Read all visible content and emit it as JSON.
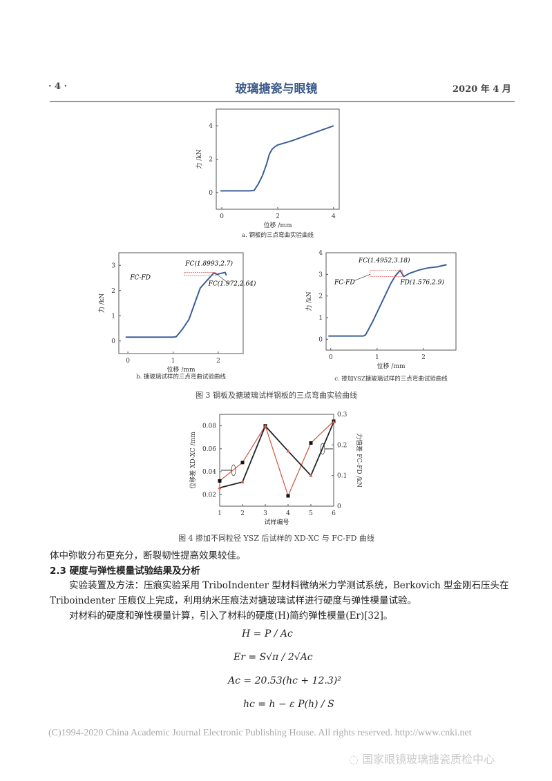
{
  "header": {
    "page": "· 4 ·",
    "journal": "玻璃搪瓷与眼镜",
    "date": "2020 年 4 月"
  },
  "figure3": {
    "caption": "图 3   钢板及搪玻璃试样钢板的三点弯曲实验曲线"
  },
  "figure4": {
    "caption": "图 4    掺加不同粒径 YSZ 后试样的 XD-XC 与 FC-FD 曲线"
  },
  "chart_data": [
    {
      "id": "a",
      "type": "line",
      "caption": "a. 钢板的三点弯曲实验曲线",
      "xlabel": "位移 /mm",
      "ylabel": "力 /kN",
      "xlim": [
        -0.2,
        4.2
      ],
      "ylim": [
        -1,
        5
      ],
      "xticks": [
        0,
        2,
        4
      ],
      "yticks": [
        0,
        2,
        4
      ],
      "color": "#3a5e99",
      "series": [
        {
          "x": [
            -0.05,
            0.5,
            1.0,
            1.15,
            1.3,
            1.45,
            1.6,
            1.7,
            1.8,
            1.9,
            2.0,
            2.5,
            3.0,
            3.5,
            4.0
          ],
          "y": [
            0.1,
            0.1,
            0.1,
            0.12,
            0.5,
            1.0,
            1.7,
            2.3,
            2.6,
            2.75,
            2.85,
            3.1,
            3.4,
            3.7,
            4.0
          ]
        }
      ],
      "annotations": []
    },
    {
      "id": "b",
      "type": "line",
      "caption": "b. 搪玻璃试样的三点弯曲试验曲线",
      "xlabel": "位移 /mm",
      "ylabel": "力 /kN",
      "xlim": [
        -0.2,
        2.55
      ],
      "ylim": [
        -0.5,
        3.5
      ],
      "xticks": [
        0,
        1,
        2
      ],
      "yticks": [
        0,
        1,
        2,
        3
      ],
      "color": "#3a5e99",
      "series": [
        {
          "x": [
            -0.05,
            0.5,
            1.0,
            1.07,
            1.2,
            1.35,
            1.5,
            1.6,
            1.75,
            1.8993,
            1.972,
            2.05,
            2.15,
            2.18
          ],
          "y": [
            0.15,
            0.15,
            0.15,
            0.17,
            0.45,
            0.85,
            1.6,
            2.1,
            2.4,
            2.7,
            2.64,
            2.68,
            2.72,
            2.6
          ]
        }
      ],
      "annotations": [
        {
          "text": "FC(1.8993,2.7)"
        },
        {
          "text": "FC(1.972,2.64)"
        },
        {
          "text": "FC-FD"
        }
      ]
    },
    {
      "id": "c",
      "type": "line",
      "caption": "c. 掺加YSZ搪玻璃试样的三点弯曲试验曲线",
      "xlabel": "位移 /mm",
      "ylabel": "力 /kN",
      "xlim": [
        -0.1,
        2.7
      ],
      "ylim": [
        -0.5,
        4
      ],
      "xticks": [
        0,
        1,
        2
      ],
      "yticks": [
        0,
        1,
        2,
        3,
        4
      ],
      "color": "#3a5e99",
      "series": [
        {
          "x": [
            -0.05,
            0.4,
            0.7,
            0.75,
            0.9,
            1.1,
            1.3,
            1.4,
            1.4952,
            1.576,
            1.7,
            1.9,
            2.1,
            2.3,
            2.5
          ],
          "y": [
            0.15,
            0.15,
            0.15,
            0.2,
            0.8,
            1.7,
            2.6,
            2.95,
            3.18,
            2.9,
            3.05,
            3.2,
            3.3,
            3.35,
            3.45
          ]
        }
      ],
      "annotations": [
        {
          "text": "FC(1.4952,3.18)"
        },
        {
          "text": "FD(1.576,2.9)"
        },
        {
          "text": "FC-FD"
        }
      ]
    },
    {
      "id": "fig4",
      "type": "line",
      "xlabel": "试样编号",
      "ylabel": "位移差 XD-XC /mm",
      "y2label": "力值差 FC-FD /kN",
      "xlim": [
        1,
        6
      ],
      "ylim": [
        0.01,
        0.09
      ],
      "y2lim": [
        0,
        0.3
      ],
      "xticks": [
        1,
        2,
        3,
        4,
        5,
        6
      ],
      "yticks": [
        0.02,
        0.04,
        0.06,
        0.08
      ],
      "y2ticks": [
        0,
        0.1,
        0.2,
        0.3
      ],
      "categories": [
        1,
        2,
        3,
        4,
        5,
        6
      ],
      "series": [
        {
          "axis": "left",
          "color": "#d0604a",
          "marker": "square",
          "values": [
            0.032,
            0.048,
            0.08,
            0.019,
            0.065,
            0.084
          ]
        },
        {
          "axis": "right",
          "color": "#222222",
          "marker": "triangle",
          "values": [
            0.06,
            0.079,
            0.262,
            0.18,
            0.1,
            0.275
          ]
        }
      ]
    }
  ],
  "body": {
    "line1": "体中弥散分布更充分，断裂韧性提高效果较佳。",
    "section": "2.3    硬度与弹性模量试验结果及分析",
    "para1a": "实验装置及方法：压痕实验采用 TriboIndenter 型材料微纳米力学测试系统，Berkovich 型金刚石压头在",
    "para1b": "Triboindenter 压痕仪上完成，利用纳米压痕法对搪玻璃试样进行硬度与弹性模量试验。",
    "para2": "对材料的硬度和弹性模量计算，引入了材料的硬度(H)简约弹性模量(Er)[32]。",
    "eq1": "H = P / Ac",
    "eq2": "Er = S√π / 2√Ac",
    "eq3": "Ac = 20.53(hc + 12.3)²",
    "eq4": "hc = h − ε P(h) / S"
  },
  "watermark": "(C)1994-2020 China Academic Journal Electronic Publishing House. All rights reserved.    http://www.cnki.net",
  "wechat": "国家眼镜玻璃搪瓷质检中心"
}
